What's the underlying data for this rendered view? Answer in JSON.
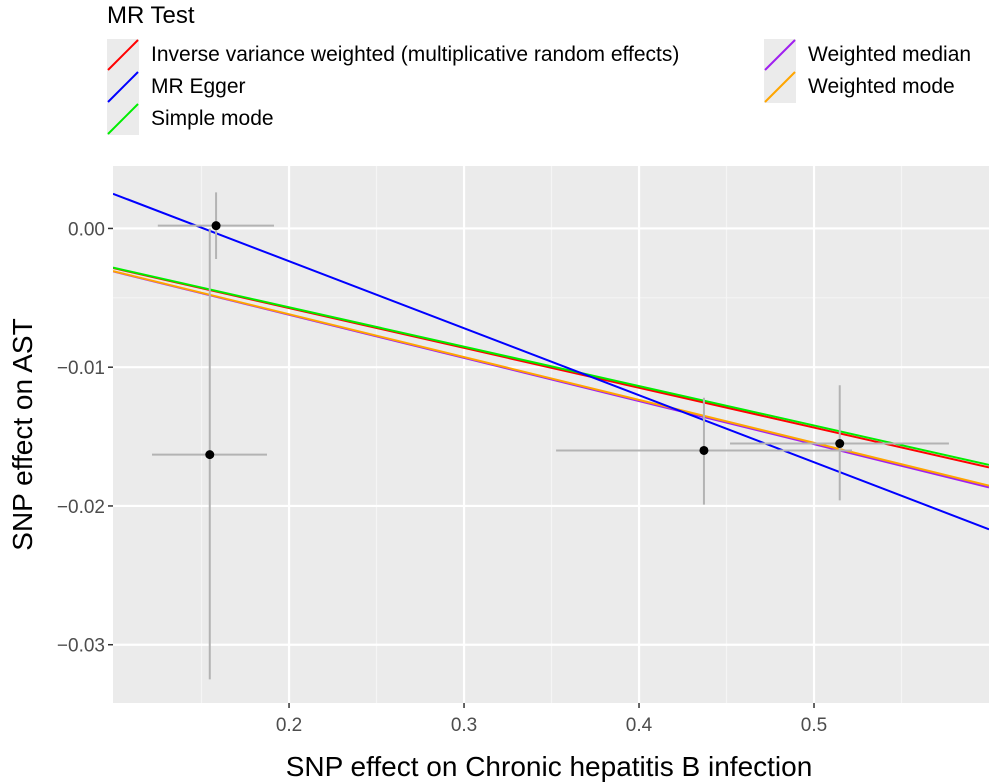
{
  "chart_data": {
    "type": "scatter",
    "title": "",
    "xlabel": "SNP effect on Chronic hepatitis B infection",
    "ylabel": "SNP effect on AST",
    "xlim": [
      0.0994,
      0.6
    ],
    "ylim": [
      -0.0342,
      0.0045
    ],
    "x_ticks": [
      0.2,
      0.3,
      0.4,
      0.5
    ],
    "x_tick_labels": [
      "0.2",
      "0.3",
      "0.4",
      "0.5"
    ],
    "y_ticks": [
      0.0,
      -0.01,
      -0.02,
      -0.03
    ],
    "y_tick_labels": [
      "0.00",
      "−0.01",
      "−0.02",
      "−0.03"
    ],
    "grid": true,
    "legend": {
      "title": "MR Test",
      "placement": "top",
      "entries": [
        {
          "label": "Inverse variance weighted (multiplicative random effects)",
          "color": "#ff0000"
        },
        {
          "label": "MR Egger",
          "color": "#0000ff"
        },
        {
          "label": "Simple mode",
          "color": "#00ee00"
        },
        {
          "label": "Weighted median",
          "color": "#a020f0"
        },
        {
          "label": "Weighted mode",
          "color": "#ffa500"
        }
      ]
    },
    "points": [
      {
        "x": 0.1583,
        "y": 0.0002,
        "x_lo": 0.125,
        "x_hi": 0.1914,
        "y_lo": -0.0022,
        "y_hi": 0.0026
      },
      {
        "x": 0.1547,
        "y": -0.0163,
        "x_lo": 0.1217,
        "x_hi": 0.1874,
        "y_lo": -0.0325,
        "y_hi": 0.0
      },
      {
        "x": 0.4371,
        "y": -0.016,
        "x_lo": 0.3526,
        "x_hi": 0.5217,
        "y_lo": -0.0199,
        "y_hi": -0.0122
      },
      {
        "x": 0.5147,
        "y": -0.0155,
        "x_lo": 0.452,
        "x_hi": 0.5771,
        "y_lo": -0.0196,
        "y_hi": -0.0113
      }
    ],
    "series": [
      {
        "name": "Inverse variance weighted (multiplicative random effects)",
        "color": "#ff0000",
        "intercept": 0.0,
        "slope": -0.0287
      },
      {
        "name": "MR Egger",
        "color": "#0000ff",
        "intercept": 0.0073,
        "slope": -0.0483
      },
      {
        "name": "Simple mode",
        "color": "#00ee00",
        "intercept": 0.0,
        "slope": -0.0284
      },
      {
        "name": "Weighted median",
        "color": "#a020f0",
        "intercept": 0.0,
        "slope": -0.0311
      },
      {
        "name": "Weighted mode",
        "color": "#ffa500",
        "intercept": 0.0,
        "slope": -0.0309
      }
    ]
  }
}
